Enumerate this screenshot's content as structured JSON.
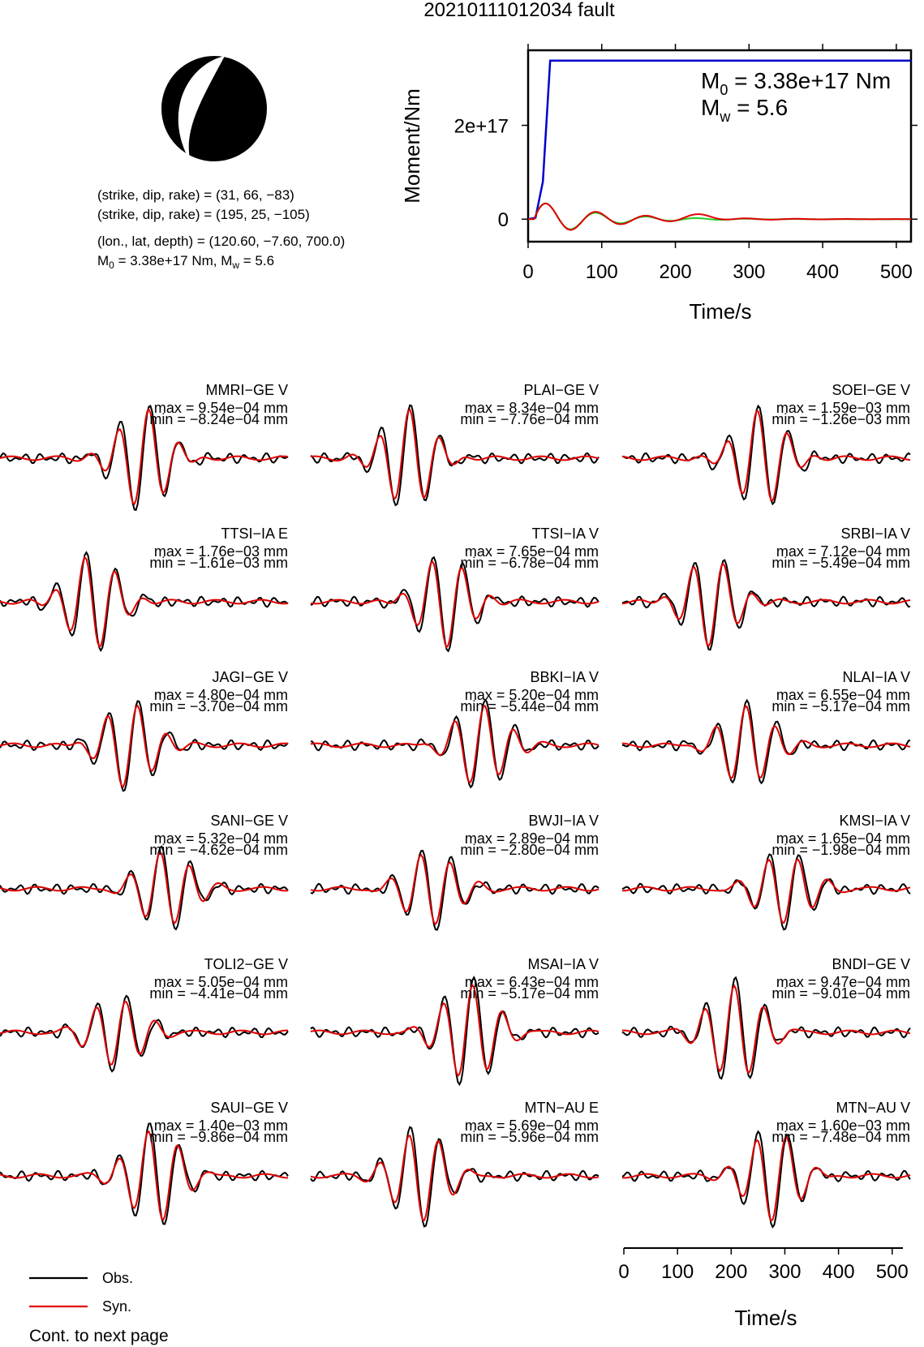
{
  "title": "20210111012034 fault",
  "mechanism": {
    "np1": "(strike, dip, rake) = (31, 66, −83)",
    "np2": "(strike, dip, rake) = (195, 25, −105)",
    "loc": "(lon., lat, depth) = (120.60, −7.60, 700.0)",
    "m0_prefix": "M",
    "m0_sub": "0",
    "m0_rest": " = 3.38e+17 Nm, M",
    "mw_sub": "w",
    "mw_rest": " = 5.6"
  },
  "stf": {
    "ylabel": "Moment/Nm",
    "xlabel": "Time/s",
    "yticks": [
      "2e+17",
      "0"
    ],
    "xticks": [
      "0",
      "100",
      "200",
      "300",
      "400",
      "500"
    ],
    "m0_label_main": "M",
    "m0_label_sub": "0",
    "m0_label_rest": " = 3.38e+17 Nm",
    "mw_label_main": "M",
    "mw_label_sub": "w",
    "mw_label_rest": " = 5.6"
  },
  "legend": {
    "obs": "Obs.",
    "syn": "Syn."
  },
  "footer": "Cont. to next page",
  "bottom_axis": {
    "xlabel": "Time/s",
    "xticks": [
      "0",
      "100",
      "200",
      "300",
      "400",
      "500"
    ]
  },
  "colors": {
    "obs": "#000000",
    "syn": "#e00000",
    "moment": "#0000cc",
    "green": "#22cc22"
  },
  "chart_data": [
    {
      "type": "line",
      "title": "",
      "xlabel": "Time/s",
      "ylabel": "Moment/Nm",
      "xlim": [
        0,
        520
      ],
      "ylim": [
        -4.8e+16,
        3.6e+17
      ],
      "series": [
        {
          "name": "",
          "x": [
            0,
            10,
            20,
            30,
            520
          ],
          "y": [
            0,
            3000000000000000.0,
            8e+16,
            3.38e+17,
            3.38e+17
          ]
        }
      ]
    },
    {
      "type": "line",
      "title": "",
      "x_unit": "Time/s",
      "stations": [
        {
          "name": "MMRI−GE V",
          "max": "max = 9.54e−04 mm",
          "min": "min = −8.24e−04 mm"
        },
        {
          "name": "PLAI−GE V",
          "max": "max = 8.34e−04 mm",
          "min": "min = −7.76e−04 mm"
        },
        {
          "name": "SOEI−GE V",
          "max": "max = 1.59e−03 mm",
          "min": "min = −1.26e−03 mm"
        },
        {
          "name": "TTSI−IA E",
          "max": "max = 1.76e−03 mm",
          "min": "min = −1.61e−03 mm"
        },
        {
          "name": "TTSI−IA V",
          "max": "max = 7.65e−04 mm",
          "min": "min = −6.78e−04 mm"
        },
        {
          "name": "SRBI−IA V",
          "max": "max = 7.12e−04 mm",
          "min": "min = −5.49e−04 mm"
        },
        {
          "name": "JAGI−GE V",
          "max": "max = 4.80e−04 mm",
          "min": "min = −3.70e−04 mm"
        },
        {
          "name": "BBKI−IA V",
          "max": "max = 5.20e−04 mm",
          "min": "min = −5.44e−04 mm"
        },
        {
          "name": "NLAI−IA V",
          "max": "max = 6.55e−04 mm",
          "min": "min = −5.17e−04 mm"
        },
        {
          "name": "SANI−GE V",
          "max": "max = 5.32e−04 mm",
          "min": "min = −4.62e−04 mm"
        },
        {
          "name": "BWJI−IA V",
          "max": "max = 2.89e−04 mm",
          "min": "min = −2.80e−04 mm"
        },
        {
          "name": "KMSI−IA V",
          "max": "max = 1.65e−04 mm",
          "min": "min = −1.98e−04 mm"
        },
        {
          "name": "TOLI2−GE V",
          "max": "max = 5.05e−04 mm",
          "min": "min = −4.41e−04 mm"
        },
        {
          "name": "MSAI−IA V",
          "max": "max = 6.43e−04 mm",
          "min": "min = −5.17e−04 mm"
        },
        {
          "name": "BNDI−GE V",
          "max": "max = 9.47e−04 mm",
          "min": "min = −9.01e−04 mm"
        },
        {
          "name": "SAUI−GE V",
          "max": "max = 1.40e−03 mm",
          "min": "min = −9.86e−04 mm"
        },
        {
          "name": "MTN−AU E",
          "max": "max = 5.69e−04 mm",
          "min": "min = −5.96e−04 mm"
        },
        {
          "name": "MTN−AU V",
          "max": "max = 1.60e−03 mm",
          "min": "min = −7.48e−04 mm"
        }
      ]
    }
  ]
}
